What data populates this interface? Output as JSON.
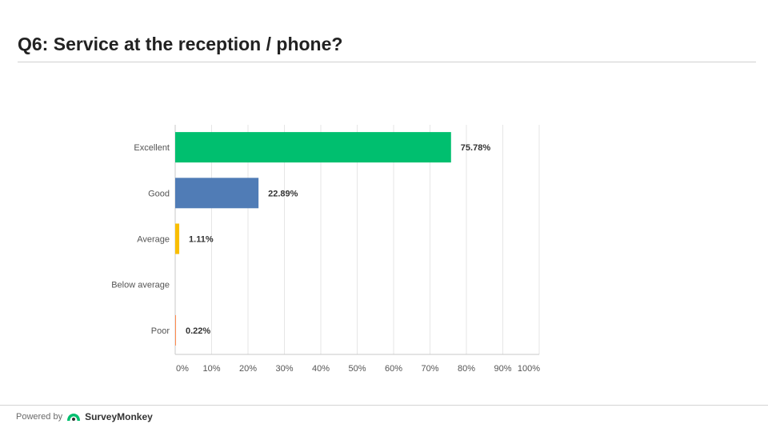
{
  "slide": {
    "title": "Q6: Service at the reception / phone?"
  },
  "footer": {
    "powered_by": "Powered by",
    "brand": "SurveyMonkey",
    "brand_icon": "surveymonkey-logo-icon"
  },
  "chart_data": {
    "type": "bar",
    "orientation": "horizontal",
    "categories": [
      "Excellent",
      "Good",
      "Average",
      "Below average",
      "Poor"
    ],
    "values": [
      75.78,
      22.89,
      1.11,
      0,
      0.22
    ],
    "value_labels": [
      "75.78%",
      "22.89%",
      "1.11%",
      "",
      "0.22%"
    ],
    "colors": [
      "#00bf6f",
      "#507cb6",
      "#f9be00",
      "#6bc8cd",
      "#ff8b4f"
    ],
    "x_ticks": [
      0,
      10,
      20,
      30,
      40,
      50,
      60,
      70,
      80,
      90,
      100
    ],
    "x_tick_labels": [
      "0%",
      "10%",
      "20%",
      "30%",
      "40%",
      "50%",
      "60%",
      "70%",
      "80%",
      "90%",
      "100%"
    ],
    "xlim": [
      0,
      100
    ],
    "grid": true,
    "legend": false,
    "title": "",
    "xlabel": "",
    "ylabel": ""
  }
}
